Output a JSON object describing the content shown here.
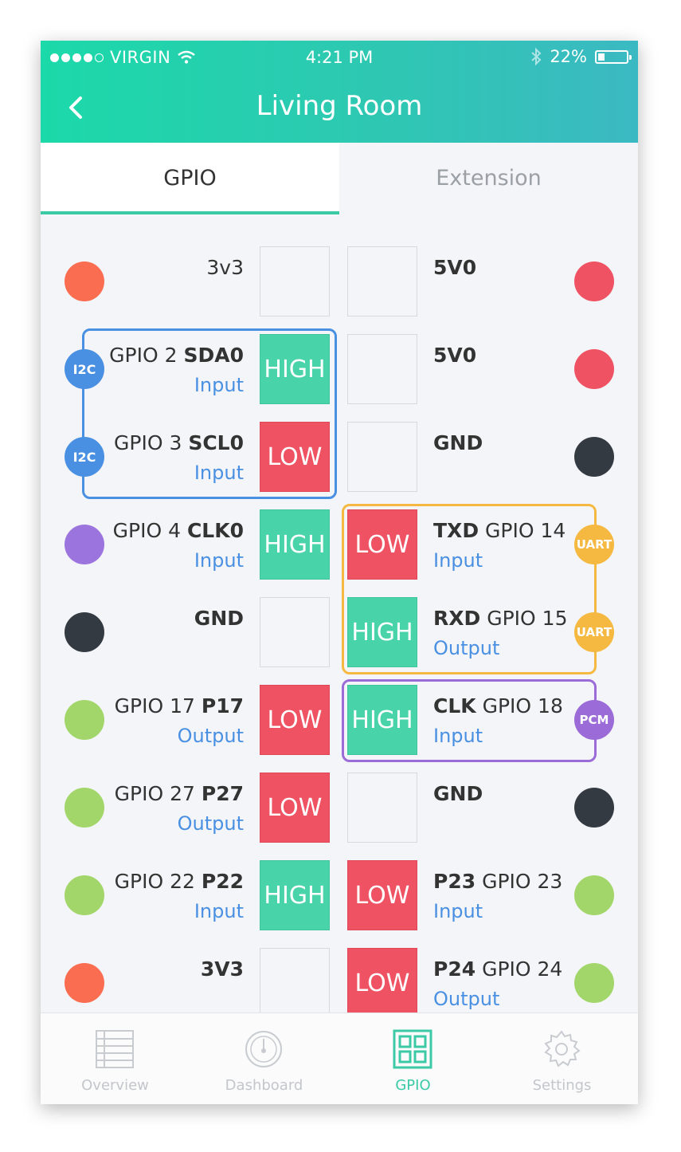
{
  "status_bar": {
    "carrier": "VIRGIN",
    "time": "4:21 PM",
    "battery": "22%"
  },
  "header": {
    "title": "Living Room"
  },
  "tabs": [
    {
      "label": "GPIO",
      "active": true
    },
    {
      "label": "Extension",
      "active": false
    }
  ],
  "colors": {
    "high": "#48d3a8",
    "low": "#ef5363",
    "accent": "#3cc9a6",
    "i2c": "#4a90e2",
    "uart": "#f5b942",
    "pcm": "#9b6bd8"
  },
  "pins_left": [
    {
      "name": "3v3",
      "name_bold": "",
      "mode": "",
      "state": "",
      "dot": "#fb6d50"
    },
    {
      "name": "GPIO 2 ",
      "name_bold": "SDA0",
      "mode": "Input",
      "state": "HIGH",
      "dot": "#4a90e2",
      "tag": "I2C"
    },
    {
      "name": "GPIO 3 ",
      "name_bold": "SCL0",
      "mode": "Input",
      "state": "LOW",
      "dot": "#4a90e2",
      "tag": "I2C"
    },
    {
      "name": "GPIO 4 ",
      "name_bold": "CLK0",
      "mode": "Input",
      "state": "HIGH",
      "dot": "#9b74de"
    },
    {
      "name": "",
      "name_bold": "GND",
      "mode": "",
      "state": "",
      "dot": "#343a42"
    },
    {
      "name": "GPIO 17 ",
      "name_bold": "P17",
      "mode": "Output",
      "state": "LOW",
      "dot": "#a2d66a"
    },
    {
      "name": "GPIO 27 ",
      "name_bold": "P27",
      "mode": "Output",
      "state": "LOW",
      "dot": "#a2d66a"
    },
    {
      "name": "GPIO 22 ",
      "name_bold": "P22",
      "mode": "Input",
      "state": "HIGH",
      "dot": "#a2d66a"
    },
    {
      "name": "",
      "name_bold": "3V3",
      "mode": "",
      "state": "",
      "dot": "#fb6d50"
    }
  ],
  "pins_right": [
    {
      "name_bold": "5V0",
      "name": "",
      "mode": "",
      "state": "",
      "dot": "#ef5363"
    },
    {
      "name_bold": "5V0",
      "name": "",
      "mode": "",
      "state": "",
      "dot": "#ef5363"
    },
    {
      "name_bold": "GND",
      "name": "",
      "mode": "",
      "state": "",
      "dot": "#343a42"
    },
    {
      "name_bold": "TXD",
      "name": " GPIO 14",
      "mode": "Input",
      "state": "LOW",
      "dot": "#f5b942",
      "tag": "UART"
    },
    {
      "name_bold": "RXD",
      "name": " GPIO 15",
      "mode": "Output",
      "state": "HIGH",
      "dot": "#f5b942",
      "tag": "UART"
    },
    {
      "name_bold": "CLK",
      "name": " GPIO 18",
      "mode": "Input",
      "state": "HIGH",
      "dot": "#9b6bd8",
      "tag": "PCM"
    },
    {
      "name_bold": "GND",
      "name": "",
      "mode": "",
      "state": "",
      "dot": "#343a42"
    },
    {
      "name_bold": "P23",
      "name": " GPIO 23",
      "mode": "Input",
      "state": "LOW",
      "dot": "#a2d66a"
    },
    {
      "name_bold": "P24",
      "name": " GPIO 24",
      "mode": "Output",
      "state": "LOW",
      "dot": "#a2d66a"
    }
  ],
  "bottom_nav": [
    {
      "label": "Overview",
      "icon": "list-icon",
      "active": false
    },
    {
      "label": "Dashboard",
      "icon": "gauge-icon",
      "active": false
    },
    {
      "label": "GPIO",
      "icon": "grid-icon",
      "active": true
    },
    {
      "label": "Settings",
      "icon": "gear-icon",
      "active": false
    }
  ]
}
